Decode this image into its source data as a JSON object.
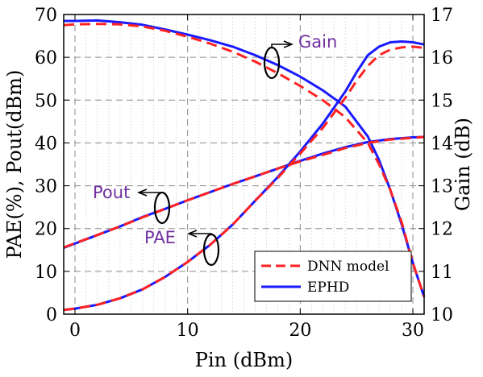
{
  "chart_data": {
    "type": "line",
    "xlabel": "Pin (dBm)",
    "ylabel_left": "PAE(%), Pout(dBm)",
    "ylabel_right": "Gain (dB)",
    "xlim": [
      -1,
      31
    ],
    "ylim_left": [
      0,
      70
    ],
    "ylim_right": [
      10,
      17
    ],
    "x_ticks": [
      "0",
      "10",
      "20",
      "30"
    ],
    "y_ticks_left": [
      "0",
      "10",
      "20",
      "30",
      "40",
      "50",
      "60",
      "70"
    ],
    "y_ticks_right": [
      "10",
      "11",
      "12",
      "13",
      "14",
      "15",
      "16",
      "17"
    ],
    "grid": true,
    "legend_position": "bottom-right",
    "legend": [
      {
        "label": "DNN model",
        "color": "#ff2222",
        "style": "dashed"
      },
      {
        "label": "EPHD",
        "color": "#1a1aff",
        "style": "solid"
      }
    ],
    "annotations": [
      {
        "text": "Gain",
        "color": "#7030a0"
      },
      {
        "text": "Pout",
        "color": "#7030a0"
      },
      {
        "text": "PAE",
        "color": "#7030a0"
      }
    ],
    "series": [
      {
        "legend_entry": "EPHD",
        "quantity": "Gain",
        "axis": "right",
        "x": [
          -1,
          0,
          2,
          4,
          6,
          8,
          10,
          12,
          14,
          16,
          18,
          20,
          22,
          24,
          26,
          27,
          28,
          29,
          30,
          31
        ],
        "y": [
          16.85,
          16.85,
          16.86,
          16.82,
          16.76,
          16.65,
          16.53,
          16.4,
          16.25,
          16.05,
          15.82,
          15.55,
          15.23,
          14.85,
          14.15,
          13.6,
          12.9,
          12.1,
          11.2,
          10.4
        ]
      },
      {
        "legend_entry": "DNN model",
        "quantity": "Gain",
        "axis": "right",
        "x": [
          -1,
          0,
          2,
          4,
          6,
          8,
          10,
          12,
          14,
          16,
          18,
          20,
          22,
          24,
          26,
          27,
          28,
          29,
          30,
          31
        ],
        "y": [
          16.75,
          16.77,
          16.78,
          16.77,
          16.72,
          16.62,
          16.48,
          16.32,
          16.13,
          15.9,
          15.63,
          15.33,
          15.0,
          14.6,
          14.0,
          13.5,
          12.9,
          12.15,
          11.2,
          10.4
        ]
      },
      {
        "legend_entry": "EPHD",
        "quantity": "Pout",
        "axis": "left",
        "x": [
          -1,
          2,
          4,
          6,
          8,
          10,
          12,
          14,
          16,
          18,
          20,
          22,
          24,
          26,
          28,
          30,
          31
        ],
        "y": [
          15.5,
          18.5,
          20.5,
          22.7,
          24.6,
          26.6,
          28.5,
          30.4,
          32.2,
          34.0,
          35.8,
          37.5,
          39.0,
          40.2,
          40.9,
          41.3,
          41.4
        ]
      },
      {
        "legend_entry": "DNN model",
        "quantity": "Pout",
        "axis": "left",
        "x": [
          -1,
          2,
          4,
          6,
          8,
          10,
          12,
          14,
          16,
          18,
          20,
          22,
          24,
          26,
          28,
          30,
          31
        ],
        "y": [
          15.6,
          18.5,
          20.5,
          22.6,
          24.6,
          26.6,
          28.5,
          30.4,
          32.2,
          34.0,
          35.7,
          37.2,
          38.8,
          40.0,
          40.8,
          41.2,
          41.4
        ]
      },
      {
        "legend_entry": "EPHD",
        "quantity": "PAE",
        "axis": "left",
        "x": [
          -1,
          0,
          2,
          4,
          6,
          8,
          10,
          12,
          14,
          16,
          18,
          20,
          22,
          24,
          25,
          26,
          27,
          28,
          29,
          30,
          31
        ],
        "y": [
          1.0,
          1.3,
          2.2,
          3.7,
          5.8,
          8.7,
          12.2,
          16.2,
          20.9,
          26.5,
          32.0,
          38.0,
          44.5,
          52.0,
          56.5,
          60.5,
          62.5,
          63.5,
          63.7,
          63.5,
          63.0
        ]
      },
      {
        "legend_entry": "DNN model",
        "quantity": "PAE",
        "axis": "left",
        "x": [
          -1,
          0,
          2,
          4,
          6,
          8,
          10,
          12,
          14,
          16,
          18,
          20,
          22,
          24,
          25,
          26,
          27,
          28,
          29,
          30,
          31
        ],
        "y": [
          1.0,
          1.3,
          2.2,
          3.7,
          5.8,
          8.7,
          12.2,
          16.2,
          20.9,
          26.5,
          31.8,
          37.5,
          43.5,
          50.5,
          54.5,
          58.0,
          60.5,
          61.8,
          62.3,
          62.5,
          62.2
        ]
      }
    ]
  }
}
